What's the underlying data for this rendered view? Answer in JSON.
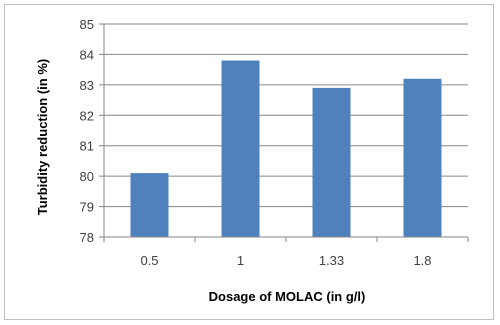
{
  "chart_data": {
    "type": "bar",
    "categories": [
      "0.5",
      "1",
      "1.33",
      "1.8"
    ],
    "values": [
      80.1,
      83.8,
      82.9,
      83.2
    ],
    "title": "",
    "xlabel": "Dosage of MOLAC (in g/l)",
    "ylabel": "Turbidity reduction (in %)",
    "ylim": [
      78,
      85
    ],
    "yticks": [
      "78",
      "79",
      "80",
      "81",
      "82",
      "83",
      "84",
      "85"
    ],
    "grid": true,
    "legend": "none",
    "bar_color": "#4f81bd",
    "grid_color": "#868686"
  }
}
